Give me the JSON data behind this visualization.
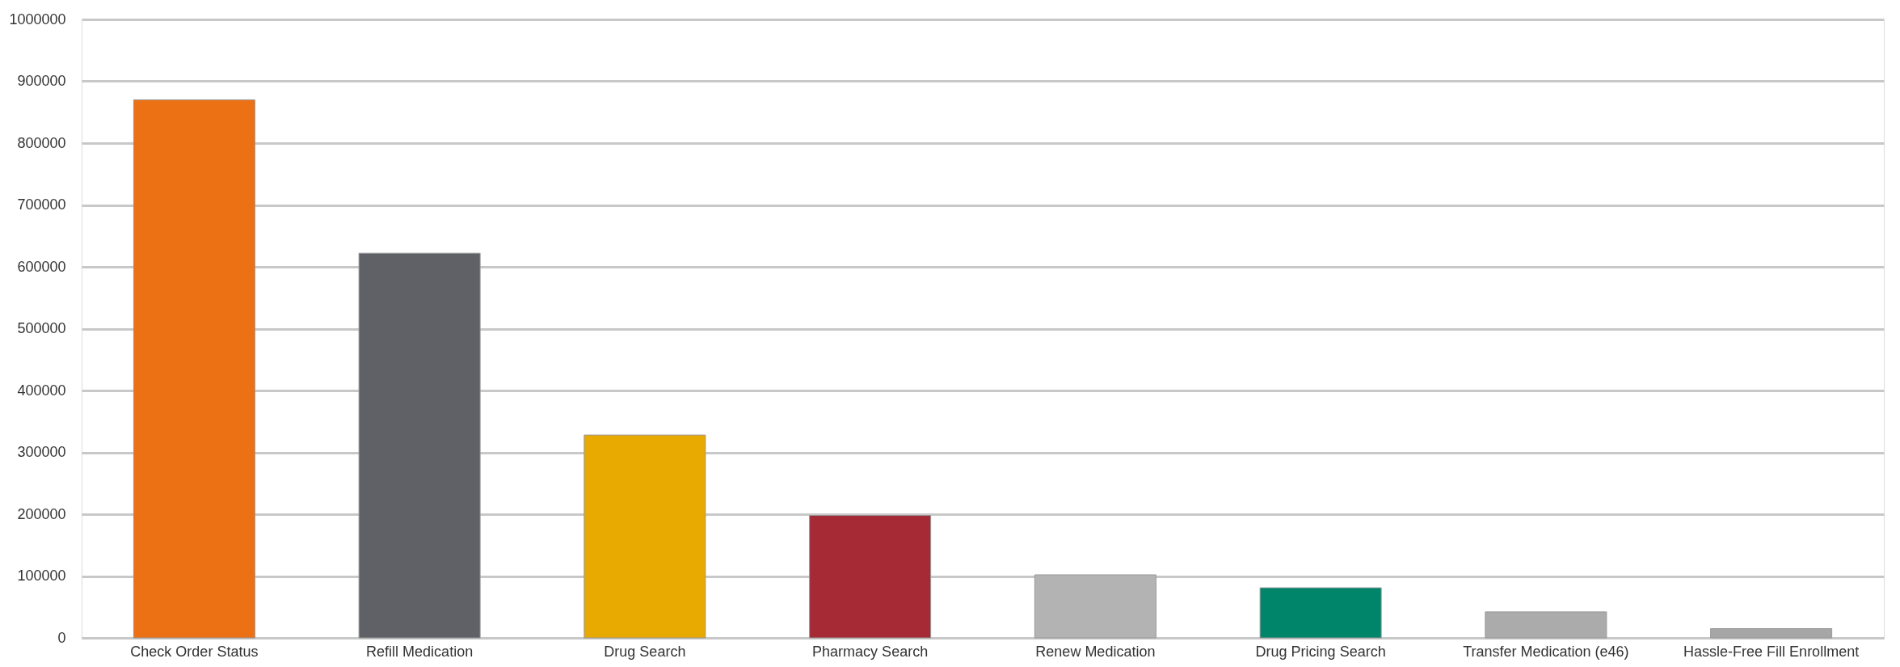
{
  "chart_data": {
    "type": "bar",
    "categories": [
      "Check Order Status",
      "Refill Medication",
      "Drug Search",
      "Pharmacy Search",
      "Renew Medication",
      "Drug Pricing Search",
      "Transfer Medication (e46)",
      "Hassle-Free Fill Enrollment"
    ],
    "values": [
      870000,
      622000,
      328000,
      198000,
      102000,
      81000,
      42000,
      15000
    ],
    "colors": [
      "#ec7014",
      "#5f6166",
      "#e8a900",
      "#a52a35",
      "#b3b3b3",
      "#00856a",
      "#ababab",
      "#a6a6a6"
    ],
    "ylim": [
      0,
      1000000
    ],
    "yticks": [
      0,
      100000,
      200000,
      300000,
      400000,
      500000,
      600000,
      700000,
      800000,
      900000,
      1000000
    ],
    "grid": "y"
  }
}
